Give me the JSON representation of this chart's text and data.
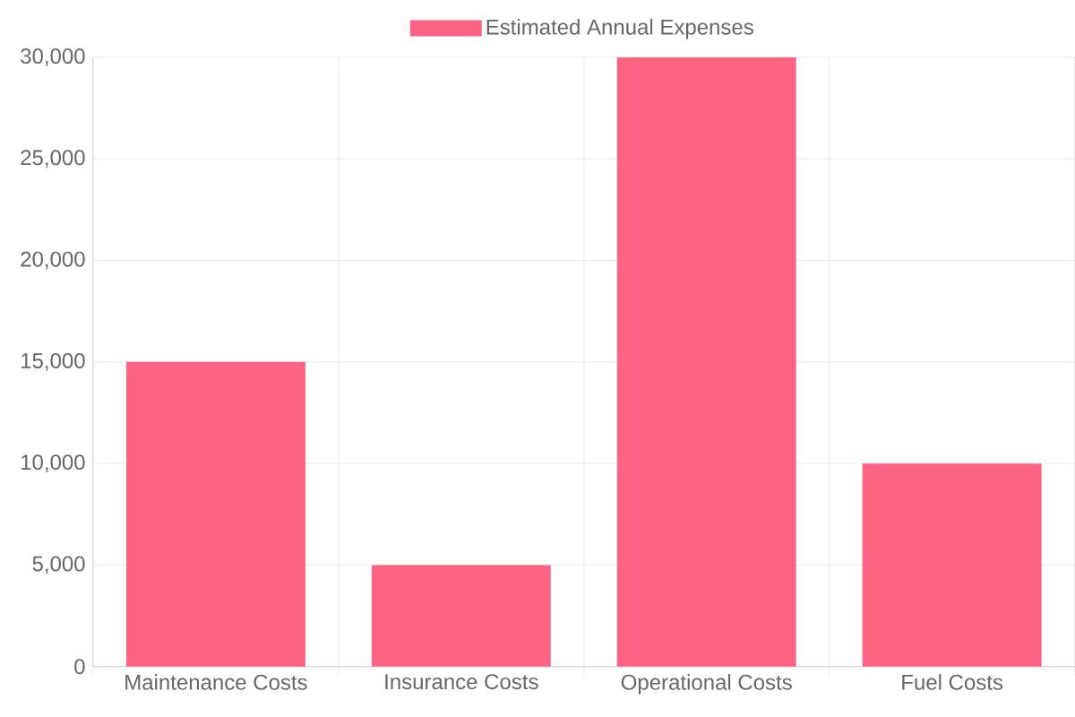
{
  "chart_data": {
    "type": "bar",
    "categories": [
      "Maintenance Costs",
      "Insurance Costs",
      "Operational Costs",
      "Fuel Costs"
    ],
    "series": [
      {
        "name": "Estimated Annual Expenses",
        "color": "#ff6384",
        "values": [
          15000,
          5000,
          30000,
          10000
        ]
      }
    ],
    "ylim": [
      0,
      30000
    ],
    "yticks": [
      {
        "value": 0,
        "label": "0"
      },
      {
        "value": 5000,
        "label": "5,000"
      },
      {
        "value": 10000,
        "label": "10,000"
      },
      {
        "value": 15000,
        "label": "15,000"
      },
      {
        "value": 20000,
        "label": "20,000"
      },
      {
        "value": 25000,
        "label": "25,000"
      },
      {
        "value": 30000,
        "label": "30,000"
      }
    ],
    "grid": true,
    "legend": "top"
  }
}
